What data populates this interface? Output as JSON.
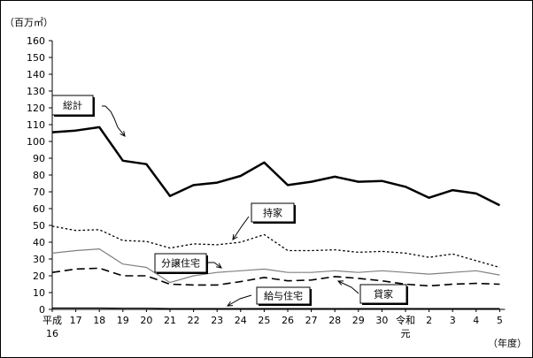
{
  "chart_data": {
    "type": "line",
    "ylabel": "（百万㎡）",
    "xlabel": "（年度）",
    "ylim": [
      0,
      160
    ],
    "ytick_step": 10,
    "grid": false,
    "categories": [
      {
        "top": "平成",
        "bottom": "16"
      },
      {
        "top": "17",
        "bottom": ""
      },
      {
        "top": "18",
        "bottom": ""
      },
      {
        "top": "19",
        "bottom": ""
      },
      {
        "top": "20",
        "bottom": ""
      },
      {
        "top": "21",
        "bottom": ""
      },
      {
        "top": "22",
        "bottom": ""
      },
      {
        "top": "23",
        "bottom": ""
      },
      {
        "top": "24",
        "bottom": ""
      },
      {
        "top": "25",
        "bottom": ""
      },
      {
        "top": "26",
        "bottom": ""
      },
      {
        "top": "27",
        "bottom": ""
      },
      {
        "top": "28",
        "bottom": ""
      },
      {
        "top": "29",
        "bottom": ""
      },
      {
        "top": "30",
        "bottom": ""
      },
      {
        "top": "令和",
        "bottom": "元"
      },
      {
        "top": "2",
        "bottom": ""
      },
      {
        "top": "3",
        "bottom": ""
      },
      {
        "top": "4",
        "bottom": ""
      },
      {
        "top": "5",
        "bottom": ""
      }
    ],
    "series": [
      {
        "name": "総計",
        "style": "solid-thick",
        "color": "#000000",
        "values": [
          105.5,
          106.5,
          108.5,
          88.5,
          86.5,
          67.5,
          74,
          75.5,
          79.5,
          87.5,
          74,
          76,
          79,
          76,
          76.5,
          73,
          66.5,
          71,
          69,
          62
        ]
      },
      {
        "name": "持家",
        "style": "dotted",
        "color": "#000000",
        "values": [
          49.5,
          47,
          47.5,
          41,
          40.5,
          36.5,
          39,
          38.5,
          40,
          44.5,
          35,
          35,
          35.5,
          34,
          34.5,
          33.5,
          31,
          33,
          29,
          25
        ]
      },
      {
        "name": "分譲住宅",
        "style": "solid-thin",
        "color": "#808080",
        "values": [
          33.5,
          35,
          36,
          27,
          25,
          16,
          20,
          22,
          23,
          24,
          22,
          22,
          23,
          22,
          23,
          22,
          21,
          22,
          23,
          20.5
        ]
      },
      {
        "name": "貸家",
        "style": "dashed",
        "color": "#000000",
        "values": [
          22,
          24,
          24.5,
          20,
          20,
          15,
          14.5,
          14.5,
          16.5,
          19,
          17,
          17.5,
          19.5,
          18.5,
          17,
          15,
          14,
          15,
          15.5,
          15
        ]
      },
      {
        "name": "給与住宅",
        "style": "solid-thin",
        "color": "#000000",
        "values": [
          0.8,
          0.8,
          0.8,
          0.7,
          0.7,
          0.5,
          0.5,
          0.5,
          0.5,
          0.5,
          0.5,
          0.5,
          0.5,
          0.5,
          0.5,
          0.5,
          0.5,
          0.5,
          0.5,
          0.5
        ]
      }
    ],
    "annotations": [
      {
        "label": "総計",
        "series": "総計"
      },
      {
        "label": "持家",
        "series": "持家"
      },
      {
        "label": "分譲住宅",
        "series": "分譲住宅"
      },
      {
        "label": "給与住宅",
        "series": "給与住宅"
      },
      {
        "label": "貸家",
        "series": "貸家"
      }
    ]
  }
}
